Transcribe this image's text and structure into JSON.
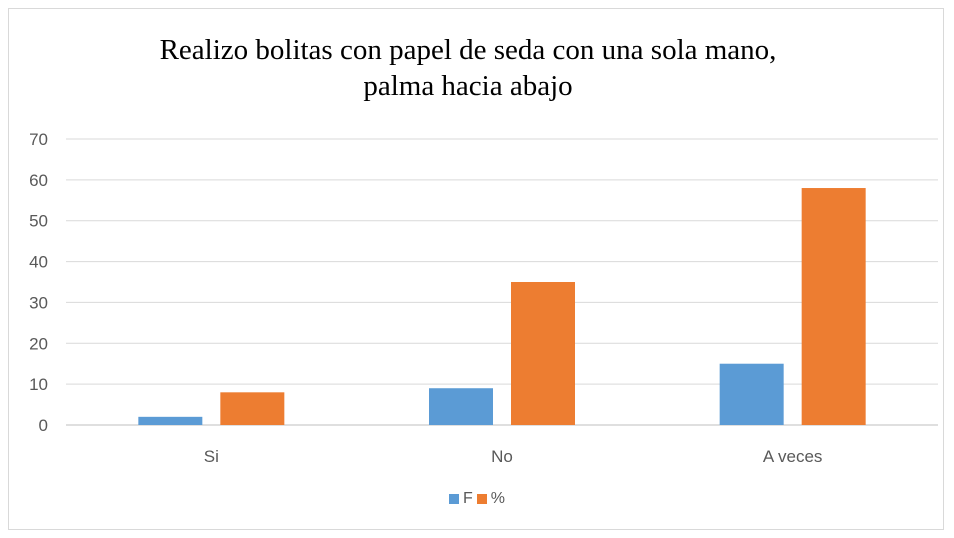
{
  "chart_data": {
    "type": "bar",
    "title_lines": [
      "Realizo bolitas con papel de seda con una sola mano,",
      "palma hacia abajo"
    ],
    "categories": [
      "Si",
      "No",
      "A veces"
    ],
    "series": [
      {
        "name": "F",
        "values": [
          2,
          9,
          15
        ],
        "color": "#5b9bd5"
      },
      {
        "name": "%",
        "values": [
          8,
          35,
          58
        ],
        "color": "#ed7d31"
      }
    ],
    "ylim": [
      0,
      70
    ],
    "yticks": [
      "0",
      "10",
      "20",
      "30",
      "40",
      "50",
      "60",
      "70"
    ],
    "grid": true,
    "legend_position": "bottom"
  }
}
